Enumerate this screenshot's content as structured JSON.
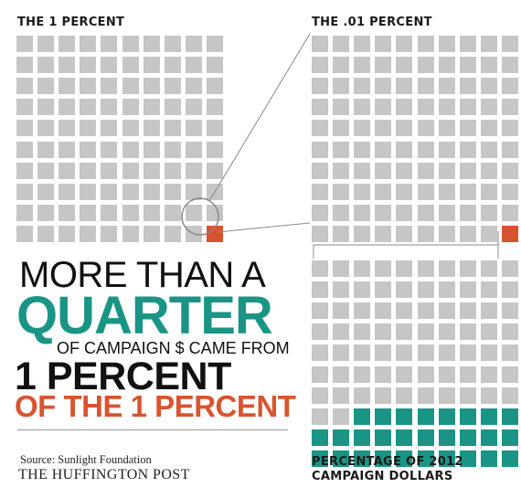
{
  "labels": {
    "one_percent": "THE 1 PERCENT",
    "point_01_percent": "THE .01 PERCENT",
    "campaign_title_line1": "PERCENTAGE OF 2012",
    "campaign_title_line2": "CAMPAIGN DOLLARS"
  },
  "headline": {
    "line1": "MORE THAN A",
    "line2": "QUARTER",
    "line3": "OF CAMPAIGN $ CAME FROM",
    "line4": "1 PERCENT",
    "line5": "OF THE 1 PERCENT"
  },
  "footer": {
    "source": "Source: Sunlight Foundation",
    "brand": "THE HUFFINGTON POST"
  },
  "colors": {
    "gray": "#c6c6c6",
    "orange": "#d85430",
    "teal": "#1a9585",
    "line": "#888888"
  },
  "chart_data": [
    {
      "type": "waffle",
      "title": "THE 1 PERCENT",
      "rows": 10,
      "cols": 10,
      "total_squares": 100,
      "highlighted_squares": 1,
      "highlighted_color": "orange"
    },
    {
      "type": "waffle",
      "title": "THE .01 PERCENT",
      "rows": 10,
      "cols": 10,
      "total_squares": 100,
      "highlighted_squares": 1,
      "highlighted_color": "orange"
    },
    {
      "type": "waffle",
      "title": "PERCENTAGE OF 2012 CAMPAIGN DOLLARS",
      "rows": 10,
      "cols": 10,
      "total_squares": 100,
      "highlighted_squares": 28,
      "highlighted_color": "teal"
    }
  ]
}
